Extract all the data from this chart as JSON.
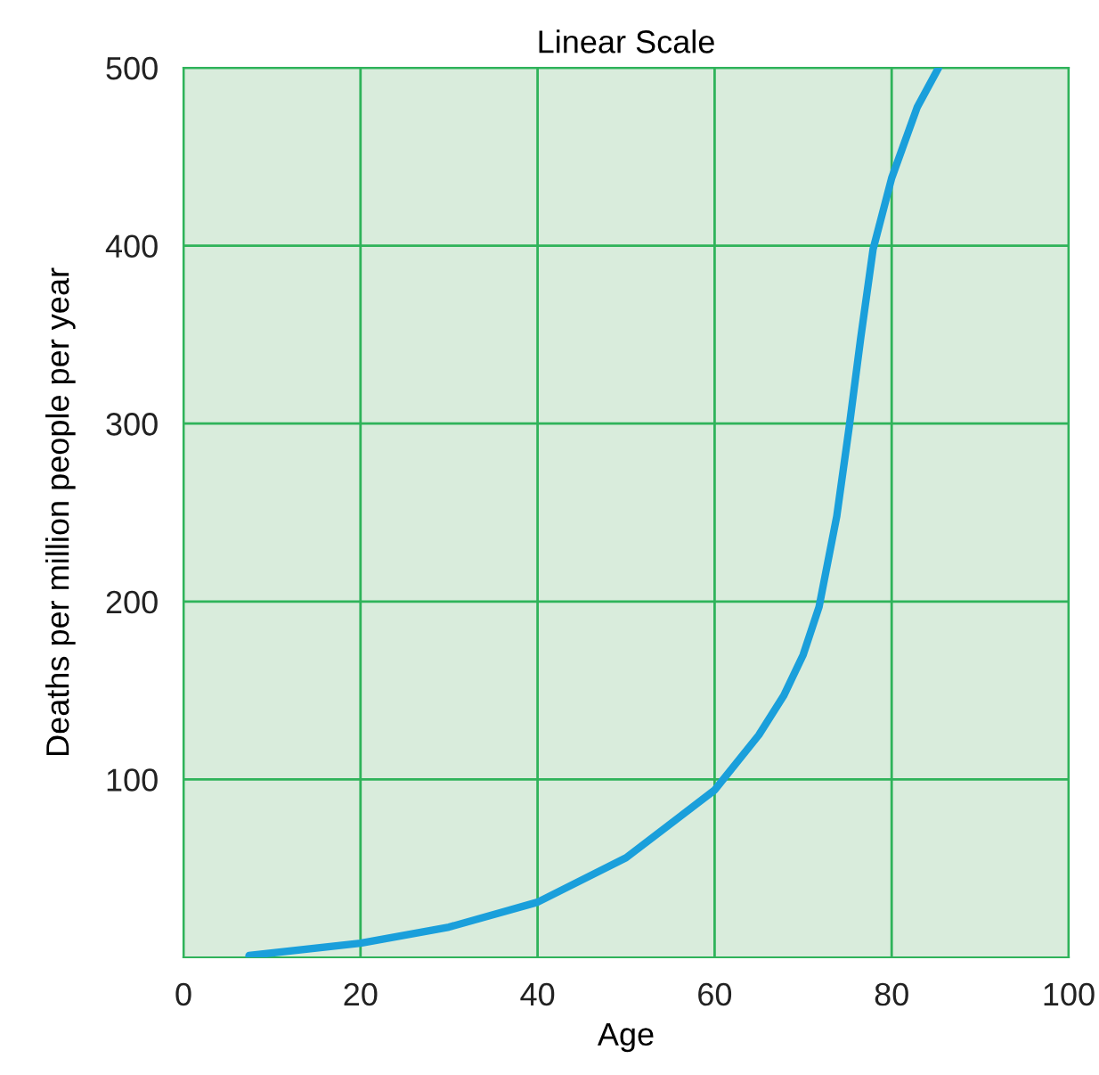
{
  "chart_data": {
    "type": "line",
    "title": "Linear Scale",
    "xlabel": "Age",
    "ylabel": "Deaths per million people per year",
    "xlim": [
      0,
      100
    ],
    "xticks": [
      0,
      20,
      40,
      60,
      80,
      100
    ],
    "ylim": [
      0,
      500
    ],
    "yticks": [
      100,
      200,
      300,
      400,
      500
    ],
    "grid": true,
    "marker": "none",
    "line_style": "solid",
    "series": [
      {
        "color": "#1a9fdb",
        "x": [
          7.4,
          20,
          30,
          40,
          50,
          60,
          65,
          67.8,
          70,
          71.8,
          73.8,
          75.2,
          76.5,
          77.9,
          80,
          82.9,
          85.3
        ],
        "values": [
          1,
          8,
          17,
          31,
          56,
          94,
          125,
          147,
          170,
          197,
          248,
          298,
          348,
          398,
          438,
          478,
          500
        ]
      }
    ]
  }
}
